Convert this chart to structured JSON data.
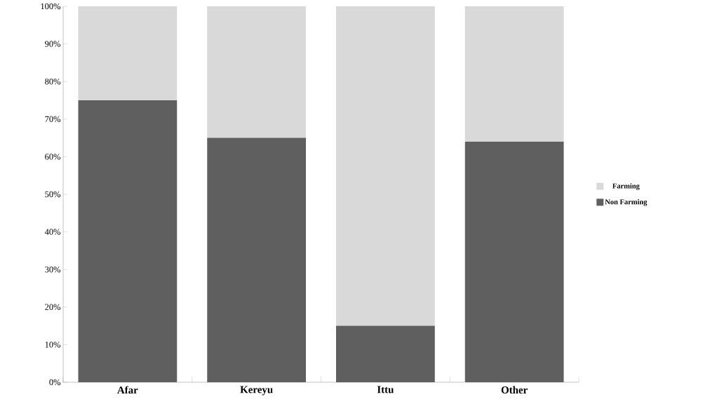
{
  "chart_data": {
    "type": "bar",
    "stacked": true,
    "categories": [
      "Afar",
      "Kereyu",
      "Ittu",
      "Other"
    ],
    "series": [
      {
        "name": "Non Farming",
        "color": "#5f5f5f",
        "values": [
          75,
          65,
          15,
          64
        ]
      },
      {
        "name": "Farming",
        "color": "#d9d9d9",
        "values": [
          25,
          35,
          85,
          36
        ]
      }
    ],
    "ylim": [
      0,
      100
    ],
    "yticks": [
      {
        "value": 0,
        "label": "0%"
      },
      {
        "value": 10,
        "label": "10%"
      },
      {
        "value": 20,
        "label": "20%"
      },
      {
        "value": 30,
        "label": "30%"
      },
      {
        "value": 40,
        "label": "40%"
      },
      {
        "value": 50,
        "label": "50%"
      },
      {
        "value": 60,
        "label": "60%"
      },
      {
        "value": 70,
        "label": "70%"
      },
      {
        "value": 80,
        "label": "80%"
      },
      {
        "value": 90,
        "label": "90%"
      },
      {
        "value": 100,
        "label": "100%"
      }
    ],
    "legend": "right",
    "grid": false
  }
}
